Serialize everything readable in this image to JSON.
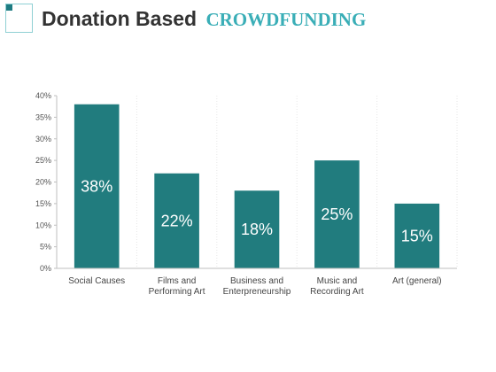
{
  "header": {
    "title_main": "Donation Based",
    "title_accent": "CROWDFUNDING"
  },
  "colors": {
    "bar": "#217c7e",
    "accent": "#3aaeb7",
    "grid": "#e6e6e6",
    "axis": "#bfbfbf"
  },
  "chart_data": {
    "type": "bar",
    "title": "",
    "xlabel": "",
    "ylabel": "",
    "categories": [
      [
        "Social Causes"
      ],
      [
        "Films and",
        "Performing Art"
      ],
      [
        "Business and",
        "Enterpreneurship"
      ],
      [
        "Music and",
        "Recording Art"
      ],
      [
        "Art (general)"
      ]
    ],
    "values": [
      38,
      22,
      18,
      25,
      15
    ],
    "data_labels": [
      "38%",
      "22%",
      "18%",
      "25%",
      "15%"
    ],
    "ylim": [
      0,
      40
    ],
    "yticks": [
      "0%",
      "5%",
      "10%",
      "15%",
      "20%",
      "25%",
      "30%",
      "35%",
      "40%"
    ],
    "grid": "vertical dotted separators",
    "legend": "none"
  }
}
